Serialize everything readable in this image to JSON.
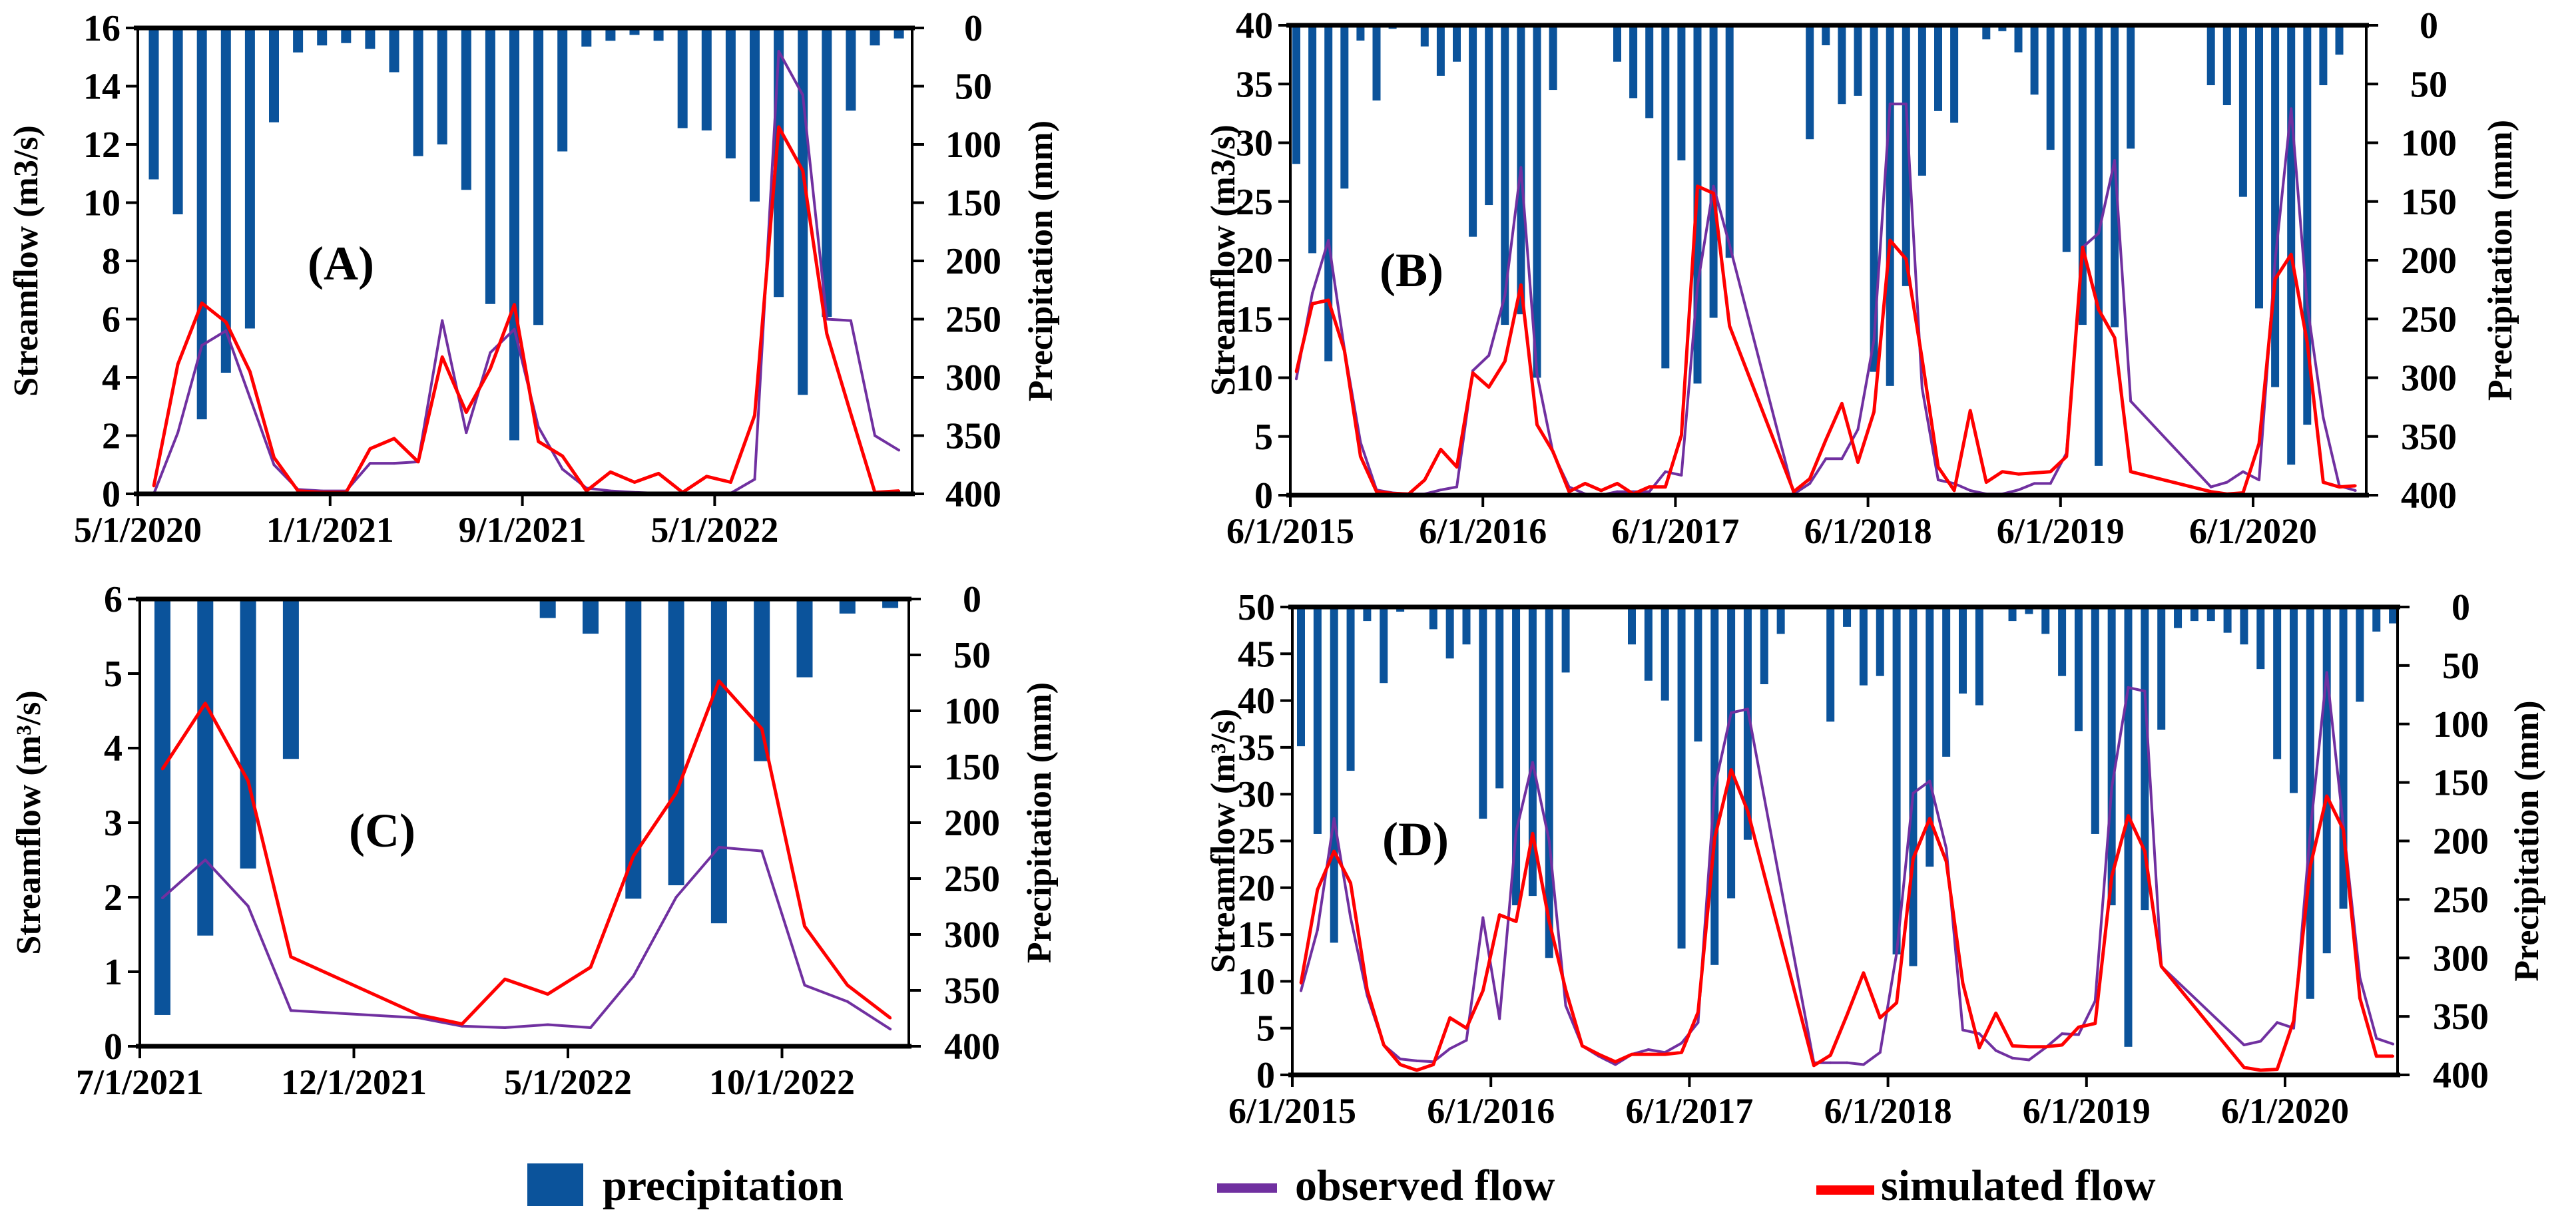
{
  "colors": {
    "precipitation": "#0B539B",
    "observed": "#7030A0",
    "simulated": "#FF0000",
    "axis": "#000000"
  },
  "legend": {
    "precipitation": "precipitation",
    "observed": "observed flow",
    "simulated": "simulated flow"
  },
  "chart_data": [
    {
      "panel": "A",
      "type": "bar+line",
      "label": "(A)",
      "y_left_label": "Streamflow (m3/s)",
      "y_right_label": "Precipitation (mm)",
      "ylim": [
        0,
        16
      ],
      "y_left_ticks": [
        "0",
        "2",
        "4",
        "6",
        "8",
        "10",
        "12",
        "14",
        "16"
      ],
      "y2lim": [
        0,
        400
      ],
      "y2_inverted": true,
      "y_right_ticks": [
        "0",
        "50",
        "100",
        "150",
        "200",
        "250",
        "300",
        "350",
        "400"
      ],
      "x_tick_labels": [
        "5/1/2020",
        "1/1/2021",
        "9/1/2021",
        "5/1/2022"
      ],
      "x_tick_index": [
        0,
        8,
        16,
        24
      ],
      "n_months": 32,
      "precipitation": [
        130,
        160,
        336,
        296,
        258,
        81,
        21,
        15,
        13,
        18,
        38,
        110,
        100,
        139,
        237,
        354,
        255,
        106,
        16,
        11,
        6,
        11,
        86,
        88,
        112,
        149,
        231,
        315,
        248,
        71,
        15,
        9
      ],
      "observed": [
        0,
        2.1,
        5.1,
        5.6,
        3.3,
        1.0,
        0.15,
        0.1,
        0.1,
        1.05,
        1.05,
        1.1,
        5.95,
        2.1,
        4.85,
        5.65,
        2.3,
        0.85,
        0.2,
        0.1,
        0.05,
        0.02,
        0,
        0.02,
        0.02,
        0.5,
        15.2,
        13.7,
        6.0,
        5.95,
        2.0,
        1.5
      ],
      "simulated": [
        0.27,
        4.45,
        6.55,
        5.9,
        4.2,
        1.25,
        0.1,
        0.05,
        0.05,
        1.55,
        1.9,
        1.1,
        4.7,
        2.8,
        4.3,
        6.5,
        1.8,
        1.3,
        0.1,
        0.75,
        0.4,
        0.7,
        0.05,
        0.6,
        0.4,
        2.7,
        12.6,
        11.1,
        5.5,
        2.75,
        0.05,
        0.1
      ]
    },
    {
      "panel": "B",
      "type": "bar+line",
      "label": "(B)",
      "y_left_label": "Streamflow (m3/s)",
      "y_right_label": "Precipitation (mm)",
      "ylim": [
        0,
        40
      ],
      "y_left_ticks": [
        "0",
        "5",
        "10",
        "15",
        "20",
        "25",
        "30",
        "35",
        "40"
      ],
      "y2lim": [
        0,
        400
      ],
      "y2_inverted": true,
      "y_right_ticks": [
        "0",
        "50",
        "100",
        "150",
        "200",
        "250",
        "300",
        "350",
        "400"
      ],
      "x_tick_labels": [
        "6/1/2015",
        "6/1/2016",
        "6/1/2017",
        "6/1/2018",
        "6/1/2019",
        "6/1/2020"
      ],
      "x_tick_index": [
        0,
        12,
        24,
        36,
        48,
        60
      ],
      "n_months": 67,
      "precipitation": [
        118,
        194,
        286,
        139,
        13,
        64,
        3,
        0,
        18,
        43,
        31,
        180,
        153,
        255,
        246,
        300,
        55,
        0,
        0,
        0,
        31,
        62,
        79,
        292,
        115,
        305,
        249,
        198,
        0,
        0,
        0,
        0,
        97,
        17,
        67,
        60,
        295,
        307,
        222,
        128,
        73,
        83,
        0,
        12,
        5,
        23,
        59,
        106,
        193,
        255,
        375,
        257,
        105,
        0,
        0,
        0,
        0,
        51,
        68,
        146,
        241,
        308,
        374,
        340,
        51,
        25,
        0
      ],
      "observed": [
        9.9,
        17.2,
        21.7,
        12.4,
        4.5,
        0.45,
        0.2,
        0.1,
        0.1,
        0.45,
        0.7,
        10.6,
        11.9,
        17,
        27.9,
        10.3,
        3.6,
        0.7,
        0.1,
        0,
        0.3,
        0.3,
        0.3,
        2.0,
        1.7,
        17.8,
        26.3,
        21.3,
        null,
        null,
        null,
        0.1,
        1.0,
        3.1,
        3.1,
        5.6,
        13.2,
        33.3,
        33.3,
        9.1,
        1.3,
        1.0,
        0.4,
        0.1,
        0.1,
        0.45,
        1.0,
        1.0,
        3.6,
        21.1,
        22.3,
        28.5,
        8.0,
        null,
        null,
        null,
        null,
        0.7,
        1.1,
        2.0,
        1.3,
        20,
        32.9,
        16.2,
        6.6,
        0.8,
        0.4
      ],
      "simulated": [
        10.5,
        16.3,
        16.6,
        12.3,
        3.3,
        0.3,
        0.15,
        0.1,
        1.3,
        3.9,
        2.4,
        10.4,
        9.2,
        11.4,
        17.9,
        6.0,
        3.7,
        0.3,
        1.0,
        0.4,
        1.0,
        0.1,
        0.7,
        0.7,
        5.1,
        26.3,
        25.7,
        14.4,
        null,
        null,
        null,
        0.3,
        1.4,
        4.7,
        7.8,
        2.8,
        7.1,
        21.7,
        20.1,
        11.6,
        2.4,
        0.4,
        7.2,
        1.1,
        2.0,
        1.8,
        1.9,
        2.0,
        3.3,
        21.1,
        15.8,
        13.4,
        2.0,
        null,
        null,
        null,
        null,
        0.3,
        0.1,
        0.2,
        4.4,
        18.4,
        20.5,
        13.0,
        1.1,
        0.7,
        0.8
      ]
    },
    {
      "panel": "C",
      "type": "bar+line",
      "label": "(C)",
      "y_left_label": "Streamflow (m³/s)",
      "y_right_label": "Precipitation (mm)",
      "ylim": [
        0,
        6
      ],
      "y_left_ticks": [
        "0",
        "1",
        "2",
        "3",
        "4",
        "5",
        "6"
      ],
      "y2lim": [
        0,
        400
      ],
      "y2_inverted": true,
      "y_right_ticks": [
        "0",
        "50",
        "100",
        "150",
        "200",
        "250",
        "300",
        "350",
        "400"
      ],
      "x_tick_labels": [
        "7/1/2021",
        "12/1/2021",
        "5/1/2022",
        "10/1/2022"
      ],
      "x_tick_index": [
        0,
        5,
        10,
        15
      ],
      "n_months": 18,
      "precipitation": [
        372,
        301,
        241,
        143,
        0,
        0,
        0,
        0,
        0,
        17,
        31,
        268,
        256,
        290,
        145,
        70,
        13,
        8
      ],
      "observed": [
        1.99,
        2.5,
        1.88,
        0.48,
        null,
        null,
        0.38,
        0.27,
        0.25,
        0.29,
        0.25,
        0.94,
        2.0,
        2.67,
        2.62,
        0.82,
        0.6,
        0.23
      ],
      "simulated": [
        3.72,
        4.6,
        3.56,
        1.2,
        null,
        null,
        0.42,
        0.3,
        0.9,
        0.7,
        1.06,
        2.55,
        3.4,
        4.9,
        4.26,
        1.61,
        0.82,
        0.38
      ]
    },
    {
      "panel": "D",
      "type": "bar+line",
      "label": "(D)",
      "y_left_label": "Streamflow (m³/s)",
      "y_right_label": "Precipitation (mm)",
      "ylim": [
        0,
        50
      ],
      "y_left_ticks": [
        "0",
        "5",
        "10",
        "15",
        "20",
        "25",
        "30",
        "35",
        "40",
        "45",
        "50"
      ],
      "y2lim": [
        0,
        400
      ],
      "y2_inverted": true,
      "y_right_ticks": [
        "0",
        "50",
        "100",
        "150",
        "200",
        "250",
        "300",
        "350",
        "400"
      ],
      "x_tick_labels": [
        "6/1/2015",
        "6/1/2016",
        "6/1/2017",
        "6/1/2018",
        "6/1/2019",
        "6/1/2020"
      ],
      "x_tick_index": [
        0,
        12,
        24,
        36,
        48,
        60
      ],
      "n_months": 67,
      "precipitation": [
        119,
        194,
        287,
        140,
        12,
        65,
        4,
        0,
        19,
        44,
        32,
        181,
        155,
        255,
        247,
        300,
        56,
        0,
        0,
        0,
        32,
        63,
        80,
        292,
        115,
        306,
        249,
        199,
        66,
        23,
        0,
        0,
        98,
        17,
        67,
        59,
        297,
        307,
        222,
        128,
        74,
        84,
        0,
        12,
        6,
        23,
        59,
        106,
        194,
        255,
        376,
        259,
        105,
        18,
        12,
        12,
        22,
        32,
        53,
        130,
        159,
        335,
        296,
        258,
        81,
        21,
        14
      ],
      "observed": [
        9.0,
        15.5,
        27.4,
        16.8,
        8.5,
        3.2,
        1.7,
        1.5,
        1.4,
        2.8,
        3.7,
        16.8,
        6.0,
        26.0,
        33.4,
        25.0,
        7.4,
        3.1,
        2.0,
        1.1,
        2.2,
        2.7,
        2.4,
        3.4,
        5.6,
        30.7,
        38.7,
        39.1,
        null,
        null,
        null,
        1.3,
        1.3,
        1.3,
        1.1,
        2.4,
        13.0,
        30.1,
        31.4,
        24.2,
        4.8,
        4.4,
        2.6,
        1.8,
        1.6,
        2.9,
        4.4,
        4.3,
        7.9,
        30.7,
        41.4,
        41.0,
        11.6,
        null,
        null,
        null,
        null,
        3.2,
        3.6,
        5.6,
        5.0,
        26.0,
        43.0,
        26.6,
        10.4,
        3.9,
        3.3
      ],
      "simulated": [
        9.8,
        19.8,
        23.9,
        20.5,
        9.1,
        3.2,
        1.1,
        0.5,
        1.1,
        6.1,
        5.0,
        9.0,
        17.1,
        16.4,
        25.8,
        16.4,
        9.1,
        3.1,
        2.2,
        1.4,
        2.2,
        2.2,
        2.2,
        2.4,
        6.7,
        25.3,
        32.6,
        28.2,
        null,
        null,
        null,
        1.0,
        2.1,
        6.4,
        10.9,
        6.1,
        7.7,
        23.1,
        27.4,
        22.8,
        9.8,
        2.9,
        6.6,
        3.1,
        3.0,
        3.0,
        3.2,
        5.1,
        5.5,
        21.2,
        27.7,
        23.9,
        11.6,
        null,
        null,
        null,
        null,
        0.8,
        0.5,
        0.6,
        5.8,
        22.3,
        29.8,
        26.2,
        8.2,
        2.0,
        2.0
      ]
    }
  ]
}
